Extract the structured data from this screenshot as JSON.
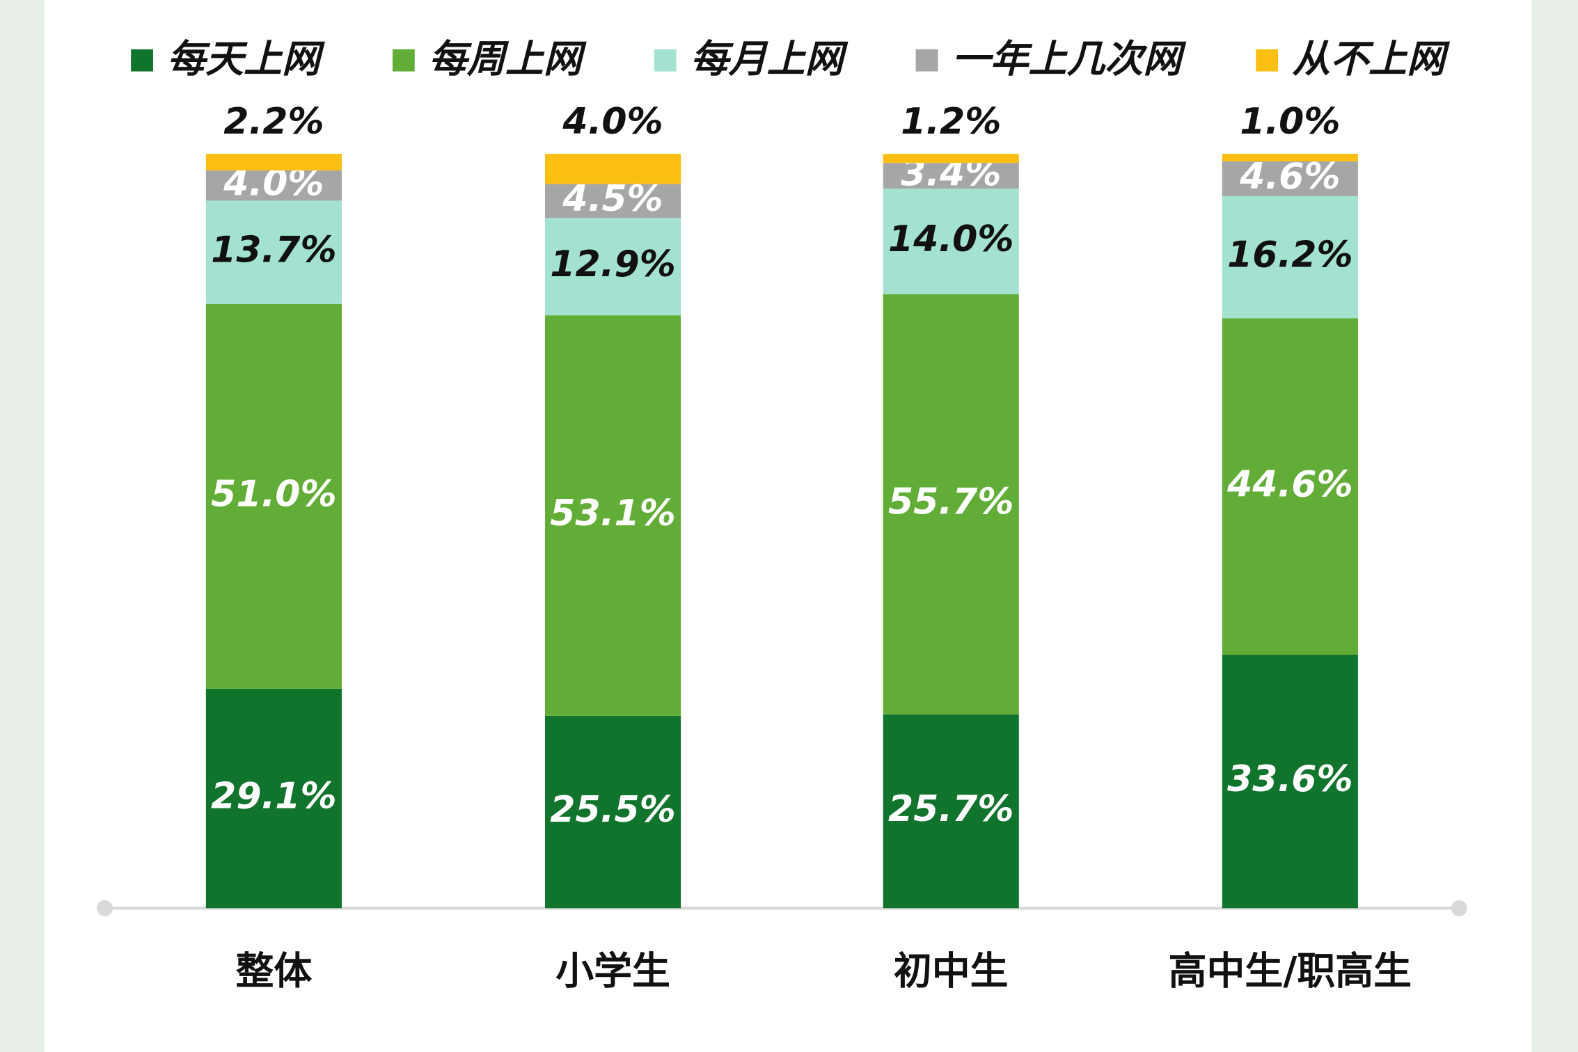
{
  "chart_data": {
    "type": "stacked-bar",
    "categories": [
      "整体",
      "小学生",
      "初中生",
      "高中生/职高生"
    ],
    "series": [
      {
        "name": "每天上网",
        "color": "#10742c",
        "label_color": "#ffffff",
        "values": [
          29.1,
          25.5,
          25.7,
          33.6
        ],
        "value_labels": [
          "29.1%",
          "25.5%",
          "25.7%",
          "33.6%"
        ]
      },
      {
        "name": "每周上网",
        "color": "#62ad37",
        "label_color": "#ffffff",
        "values": [
          51.0,
          53.1,
          55.7,
          44.6
        ],
        "value_labels": [
          "51.0%",
          "53.1%",
          "55.7%",
          "44.6%"
        ]
      },
      {
        "name": "每月上网",
        "color": "#a3e2d0",
        "label_color": "#111111",
        "values": [
          13.7,
          12.9,
          14.0,
          16.2
        ],
        "value_labels": [
          "13.7%",
          "12.9%",
          "14.0%",
          "16.2%"
        ]
      },
      {
        "name": "一年上几次网",
        "color": "#a6a6a6",
        "label_color": "#ffffff",
        "values": [
          4.0,
          4.5,
          3.4,
          4.6
        ],
        "value_labels": [
          "4.0%",
          "4.5%",
          "3.4%",
          "4.6%"
        ]
      },
      {
        "name": "从不上网",
        "color": "#fbbf14",
        "label_color": "#111111",
        "values": [
          2.2,
          4.0,
          1.2,
          1.0
        ],
        "value_labels": [
          "2.2%",
          "4.0%",
          "1.2%",
          "1.0%"
        ]
      }
    ]
  }
}
